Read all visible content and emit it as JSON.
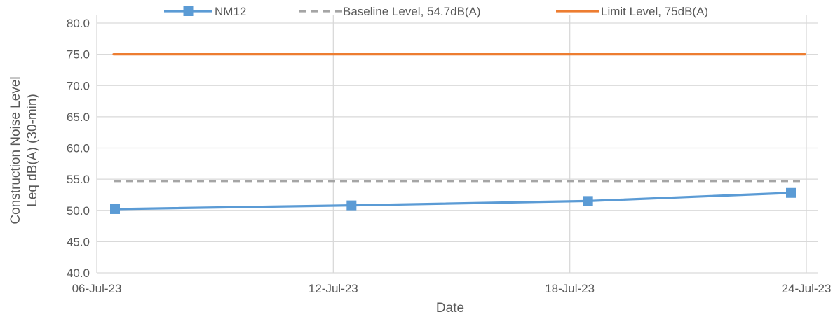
{
  "chart_data": {
    "type": "line",
    "title": "",
    "xlabel": "Date",
    "ylabel": [
      "Construction Noise Level",
      "Leq dB(A) (30-min)"
    ],
    "ylim": [
      40,
      80
    ],
    "y_ticks": [
      "40.0",
      "45.0",
      "50.0",
      "55.0",
      "60.0",
      "65.0",
      "70.0",
      "75.0",
      "80.0"
    ],
    "x_ticks": [
      "06-Jul-23",
      "12-Jul-23",
      "18-Jul-23",
      "24-Jul-23"
    ],
    "xlim": [
      "2023-07-06",
      "2023-07-24"
    ],
    "grid": true,
    "legend_position": "top",
    "series": [
      {
        "name": "NM12",
        "color": "#5B9BD5",
        "marker": "square",
        "x": [
          "2023-07-06",
          "2023-07-12",
          "2023-07-18",
          "2023-07-24"
        ],
        "values": [
          50.2,
          50.8,
          51.5,
          52.8
        ]
      },
      {
        "name": "Baseline Level, 54.7dB(A)",
        "color": "#A5A5A5",
        "dashed": true,
        "x": [
          "2023-07-06",
          "2023-07-24"
        ],
        "values": [
          54.7,
          54.7
        ]
      },
      {
        "name": "Limit Level, 75dB(A)",
        "color": "#ED7D31",
        "x": [
          "2023-07-06",
          "2023-07-24"
        ],
        "values": [
          75,
          75
        ]
      }
    ]
  }
}
